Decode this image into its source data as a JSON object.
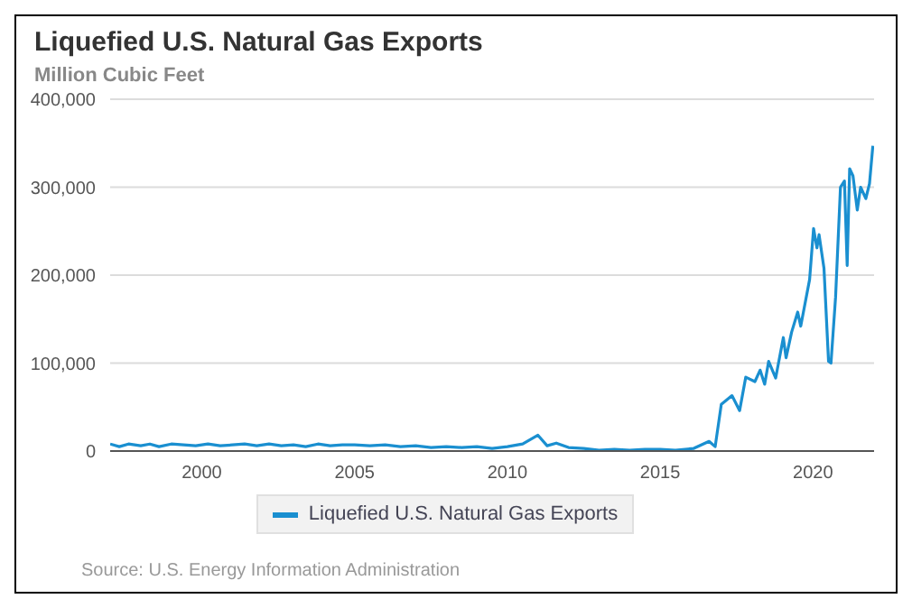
{
  "chart_data": {
    "type": "line",
    "title": "Liquefied U.S. Natural Gas Exports",
    "ylabel": "Million Cubic Feet",
    "annotations": [
      "Source: U.S. Energy Information Administration"
    ],
    "xlim": [
      1997,
      2022
    ],
    "xticks": [
      2000,
      2005,
      2010,
      2015,
      2020
    ],
    "ylim": [
      0,
      400000
    ],
    "yticks": [
      0,
      {
        "value": 100000,
        "label": "100,000"
      },
      {
        "value": 200000,
        "label": "200,000"
      },
      {
        "value": 300000,
        "label": "300,000"
      },
      {
        "value": 400000,
        "label": "400,000"
      }
    ],
    "grid": "y",
    "legend": "bottom",
    "marker": "none",
    "line_style": "solid",
    "series": [
      {
        "name": "Liquefied U.S. Natural Gas Exports",
        "color": "#1a8fd0",
        "x": [
          1997.0,
          1997.3,
          1997.6,
          1998.0,
          1998.3,
          1998.6,
          1999.0,
          1999.4,
          1999.8,
          2000.2,
          2000.6,
          2001.0,
          2001.4,
          2001.8,
          2002.2,
          2002.6,
          2003.0,
          2003.4,
          2003.8,
          2004.2,
          2004.6,
          2005.0,
          2005.5,
          2006.0,
          2006.5,
          2007.0,
          2007.5,
          2008.0,
          2008.5,
          2009.0,
          2009.5,
          2010.0,
          2010.5,
          2011.0,
          2011.3,
          2011.6,
          2012.0,
          2012.5,
          2013.0,
          2013.5,
          2014.0,
          2014.5,
          2015.0,
          2015.5,
          2016.1,
          2016.6,
          2016.8,
          2017.0,
          2017.35,
          2017.6,
          2017.8,
          2018.1,
          2018.27,
          2018.42,
          2018.55,
          2018.78,
          2019.03,
          2019.12,
          2019.3,
          2019.5,
          2019.6,
          2019.89,
          2020.02,
          2020.13,
          2020.2,
          2020.36,
          2020.51,
          2020.59,
          2020.74,
          2020.9,
          2021.03,
          2021.12,
          2021.2,
          2021.31,
          2021.45,
          2021.56,
          2021.73,
          2021.85,
          2021.96
        ],
        "values": [
          8000,
          5000,
          8000,
          6000,
          8000,
          5000,
          8000,
          7000,
          6000,
          8000,
          6000,
          7000,
          8000,
          6000,
          8000,
          6000,
          7000,
          5000,
          8000,
          6000,
          7000,
          7000,
          6000,
          7000,
          5000,
          6000,
          4000,
          5000,
          4000,
          5000,
          3000,
          5000,
          8000,
          18000,
          6000,
          9000,
          4000,
          3000,
          1000,
          2000,
          1000,
          2000,
          2000,
          1000,
          3000,
          11000,
          5000,
          53000,
          63000,
          46000,
          84000,
          79000,
          92000,
          76000,
          102000,
          83000,
          129000,
          106000,
          135000,
          158000,
          142000,
          195000,
          253000,
          231000,
          246000,
          208000,
          102000,
          100000,
          175000,
          300000,
          307000,
          211000,
          321000,
          313000,
          274000,
          300000,
          287000,
          304000,
          347000
        ]
      }
    ]
  }
}
